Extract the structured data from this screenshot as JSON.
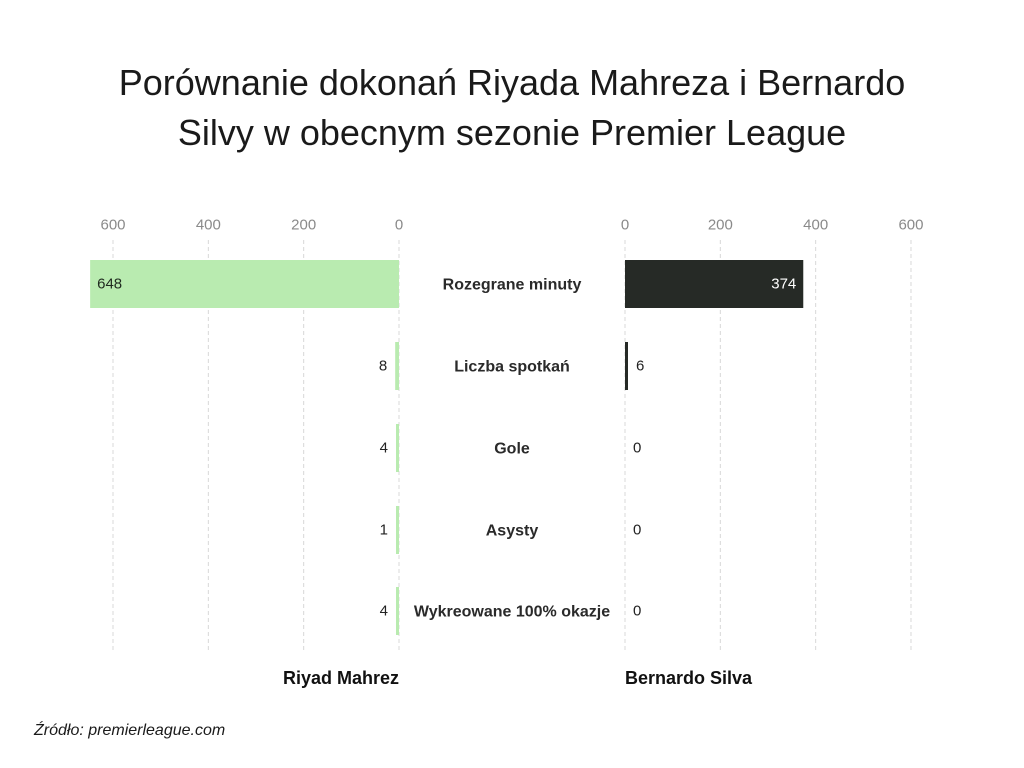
{
  "title_line1": "Porównanie dokonań Riyada Mahreza i Bernardo",
  "title_line2": "Silvy w obecnym sezonie Premier League",
  "source": "Źródło: premierleague.com",
  "colors": {
    "left": "#b9ebb0",
    "right": "#262a26",
    "grid": "#d8d8d8"
  },
  "chart_data": {
    "type": "bar",
    "orientation": "horizontal-diverging",
    "categories": [
      "Rozegrane minuty",
      "Liczba spotkań",
      "Gole",
      "Asysty",
      "Wykreowane 100% okazje"
    ],
    "series": [
      {
        "name": "Riyad Mahrez",
        "values": [
          648,
          8,
          4,
          1,
          4
        ],
        "side": "left"
      },
      {
        "name": "Bernardo Silva",
        "values": [
          374,
          6,
          0,
          0,
          0
        ],
        "side": "right"
      }
    ],
    "xlim": [
      0,
      600
    ],
    "ticks": [
      0,
      200,
      400,
      600
    ],
    "grid": true
  }
}
